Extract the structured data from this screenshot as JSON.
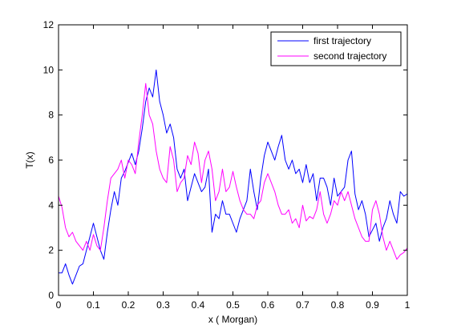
{
  "chart_data": {
    "type": "line",
    "xlabel": "x ( Morgan)",
    "ylabel": "T(x)",
    "xlim": [
      0,
      1
    ],
    "ylim": [
      0,
      12
    ],
    "xticks": [
      "0",
      "0.1",
      "0.2",
      "0.3",
      "0.4",
      "0.5",
      "0.6",
      "0.7",
      "0.8",
      "0.9",
      "1"
    ],
    "yticks": [
      "0",
      "2",
      "4",
      "6",
      "8",
      "10",
      "12"
    ],
    "grid": false,
    "legend_position": "top-right",
    "series": [
      {
        "name": "first trajectory",
        "color": "#0000ff",
        "x": [
          0,
          0.01,
          0.02,
          0.03,
          0.04,
          0.05,
          0.06,
          0.07,
          0.08,
          0.09,
          0.1,
          0.11,
          0.12,
          0.13,
          0.14,
          0.15,
          0.16,
          0.17,
          0.18,
          0.19,
          0.2,
          0.21,
          0.22,
          0.23,
          0.24,
          0.25,
          0.26,
          0.27,
          0.28,
          0.29,
          0.3,
          0.31,
          0.32,
          0.33,
          0.34,
          0.35,
          0.36,
          0.37,
          0.38,
          0.39,
          0.4,
          0.41,
          0.42,
          0.43,
          0.44,
          0.45,
          0.46,
          0.47,
          0.48,
          0.49,
          0.5,
          0.51,
          0.52,
          0.53,
          0.54,
          0.55,
          0.56,
          0.57,
          0.58,
          0.59,
          0.6,
          0.61,
          0.62,
          0.63,
          0.64,
          0.65,
          0.66,
          0.67,
          0.68,
          0.69,
          0.7,
          0.71,
          0.72,
          0.73,
          0.74,
          0.75,
          0.76,
          0.77,
          0.78,
          0.79,
          0.8,
          0.81,
          0.82,
          0.83,
          0.84,
          0.85,
          0.86,
          0.87,
          0.88,
          0.89,
          0.9,
          0.91,
          0.92,
          0.93,
          0.94,
          0.95,
          0.96,
          0.97,
          0.98,
          0.99,
          1
        ],
        "y": [
          1.0,
          1.0,
          1.4,
          0.9,
          0.5,
          0.9,
          1.3,
          1.4,
          2.0,
          2.6,
          3.2,
          2.6,
          2.0,
          1.6,
          2.8,
          3.8,
          4.6,
          4.0,
          5.2,
          5.5,
          5.9,
          6.3,
          5.8,
          6.4,
          7.4,
          8.6,
          9.2,
          8.8,
          10.0,
          8.6,
          8.0,
          7.2,
          7.6,
          7.0,
          5.6,
          5.2,
          5.6,
          4.2,
          4.8,
          5.4,
          5.0,
          4.6,
          4.8,
          5.6,
          2.8,
          3.6,
          3.4,
          4.2,
          3.6,
          3.6,
          3.2,
          2.8,
          3.4,
          3.8,
          4.2,
          5.6,
          4.6,
          3.8,
          5.2,
          6.2,
          6.8,
          6.4,
          6.0,
          6.6,
          7.1,
          6.0,
          5.6,
          6.0,
          5.4,
          5.6,
          5.0,
          5.8,
          5.0,
          5.4,
          4.2,
          5.2,
          5.2,
          4.8,
          4.0,
          5.2,
          4.4,
          4.6,
          4.8,
          6.0,
          6.4,
          4.5,
          3.8,
          4.2,
          3.6,
          2.6,
          2.9,
          3.2,
          2.4,
          3.0,
          3.4,
          4.2,
          3.6,
          3.2,
          4.6,
          4.4,
          4.5
        ]
      },
      {
        "name": "second trajectory",
        "color": "#ff00ff",
        "x": [
          0,
          0.01,
          0.02,
          0.03,
          0.04,
          0.05,
          0.06,
          0.07,
          0.08,
          0.09,
          0.1,
          0.11,
          0.12,
          0.13,
          0.14,
          0.15,
          0.16,
          0.17,
          0.18,
          0.19,
          0.2,
          0.21,
          0.22,
          0.23,
          0.24,
          0.25,
          0.26,
          0.27,
          0.28,
          0.29,
          0.3,
          0.31,
          0.32,
          0.33,
          0.34,
          0.35,
          0.36,
          0.37,
          0.38,
          0.39,
          0.4,
          0.41,
          0.42,
          0.43,
          0.44,
          0.45,
          0.46,
          0.47,
          0.48,
          0.49,
          0.5,
          0.51,
          0.52,
          0.53,
          0.54,
          0.55,
          0.56,
          0.57,
          0.58,
          0.59,
          0.6,
          0.61,
          0.62,
          0.63,
          0.64,
          0.65,
          0.66,
          0.67,
          0.68,
          0.69,
          0.7,
          0.71,
          0.72,
          0.73,
          0.74,
          0.75,
          0.76,
          0.77,
          0.78,
          0.79,
          0.8,
          0.81,
          0.82,
          0.83,
          0.84,
          0.85,
          0.86,
          0.87,
          0.88,
          0.89,
          0.9,
          0.91,
          0.92,
          0.93,
          0.94,
          0.95,
          0.96,
          0.97,
          0.98,
          0.99,
          1
        ],
        "y": [
          4.4,
          3.9,
          3.0,
          2.6,
          2.8,
          2.4,
          2.2,
          2.0,
          2.4,
          2.0,
          2.7,
          2.2,
          2.0,
          3.0,
          4.2,
          5.2,
          5.4,
          5.6,
          6.0,
          5.2,
          6.0,
          5.8,
          5.4,
          6.8,
          8.0,
          9.4,
          8.0,
          7.6,
          6.4,
          5.6,
          5.2,
          5.0,
          6.6,
          6.0,
          4.6,
          5.0,
          5.2,
          6.2,
          5.8,
          6.8,
          6.3,
          5.0,
          6.0,
          6.4,
          5.6,
          4.2,
          4.6,
          5.6,
          4.6,
          4.8,
          5.5,
          4.8,
          4.2,
          3.8,
          3.6,
          3.6,
          3.4,
          4.0,
          4.2,
          5.0,
          5.4,
          5.0,
          4.6,
          4.0,
          3.6,
          3.6,
          3.8,
          3.2,
          3.4,
          3.0,
          4.0,
          3.3,
          3.5,
          3.4,
          3.8,
          4.6,
          3.6,
          3.2,
          3.6,
          4.2,
          4.0,
          4.6,
          4.2,
          4.6,
          4.0,
          3.4,
          3.0,
          2.6,
          2.4,
          2.4,
          3.8,
          4.2,
          3.6,
          2.6,
          2.0,
          2.4,
          2.0,
          1.6,
          1.8,
          1.9,
          2.1
        ]
      }
    ]
  }
}
